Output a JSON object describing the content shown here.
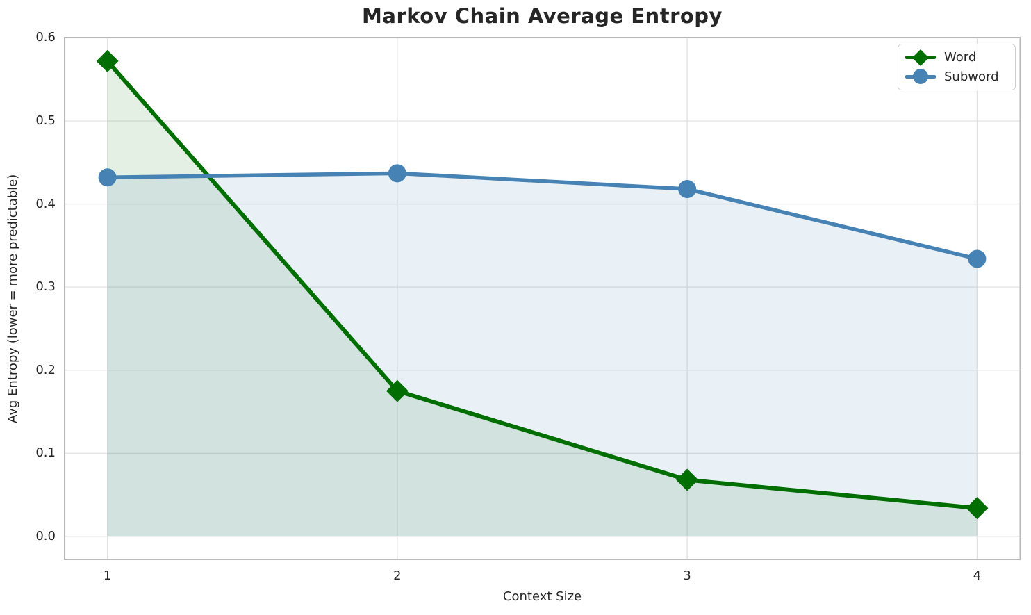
{
  "chart_data": {
    "type": "line",
    "title": "Markov Chain Average Entropy",
    "xlabel": "Context Size",
    "ylabel": "Avg Entropy (lower = more predictable)",
    "x": [
      1,
      2,
      3,
      4
    ],
    "series": [
      {
        "name": "Word",
        "color": "#006E00",
        "marker": "diamond",
        "values": [
          0.572,
          0.175,
          0.068,
          0.034
        ],
        "fill_to_zero": true,
        "fill_alpha": 0.1,
        "line_width": 6
      },
      {
        "name": "Subword",
        "color": "#4682B4",
        "marker": "circle",
        "values": [
          0.432,
          0.437,
          0.418,
          0.334
        ],
        "fill_to_zero": true,
        "fill_alpha": 0.12,
        "line_width": 5.5
      }
    ],
    "xlim": [
      0.85,
      4.15
    ],
    "ylim": [
      -0.0286,
      0.6012
    ],
    "xticks": [
      "1",
      "2",
      "3",
      "4"
    ],
    "yticks": [
      "0.0",
      "0.1",
      "0.2",
      "0.3",
      "0.4",
      "0.5",
      "0.6"
    ],
    "grid": true,
    "legend_position": "upper right",
    "colors": {
      "grid": "#e2e2e2",
      "spine": "#b9b9b9",
      "text": "#262626",
      "background": "#ffffff"
    }
  }
}
